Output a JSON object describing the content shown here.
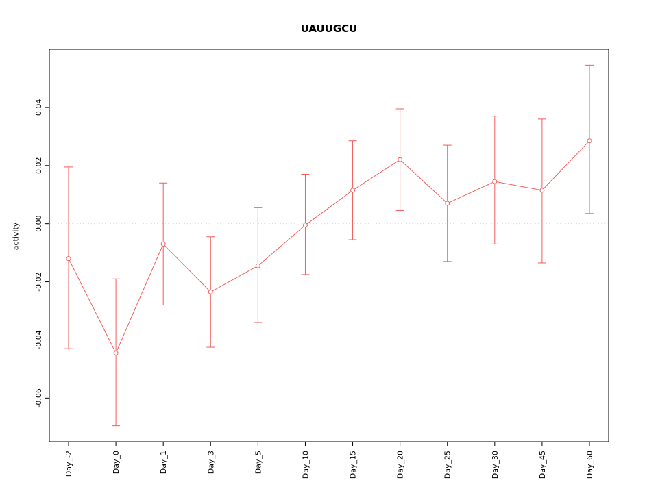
{
  "page": {
    "background": "#ffffff"
  },
  "chart_data": {
    "type": "line",
    "title": "UAUUGCU",
    "xlabel": "",
    "ylabel": "activity",
    "legend": "none",
    "grid": "off",
    "point_style": "open-circle",
    "error_bars": true,
    "series_color": "#f25c5c",
    "zero_line": {
      "show": true,
      "value": 0,
      "color": "#d9d9d9",
      "style": "dotted"
    },
    "ylim": [
      -0.075,
      0.06
    ],
    "yticks": [
      0.04,
      0.02,
      0,
      -0.02,
      -0.04,
      -0.06
    ],
    "ytick_labels": [
      "0.04",
      "0.02",
      "0.00",
      "-0.02",
      "-0.04",
      "-0.06"
    ],
    "categories": [
      "Day_-2",
      "Day_0",
      "Day_1",
      "Day_3",
      "Day_5",
      "Day_10",
      "Day_15",
      "Day_20",
      "Day_25",
      "Day_30",
      "Day_45",
      "Day_60"
    ],
    "series": [
      {
        "name": "activity",
        "values": [
          -0.012,
          -0.0445,
          -0.007,
          -0.0235,
          -0.0145,
          -0.0005,
          0.0115,
          0.022,
          0.007,
          0.0145,
          0.0115,
          0.0285
        ],
        "upper": [
          0.0195,
          -0.019,
          0.014,
          -0.0045,
          0.0055,
          0.017,
          0.0285,
          0.0395,
          0.027,
          0.037,
          0.036,
          0.0545
        ],
        "lower": [
          -0.043,
          -0.0695,
          -0.028,
          -0.0425,
          -0.034,
          -0.0175,
          -0.0055,
          0.0045,
          -0.013,
          -0.007,
          -0.0135,
          0.0035
        ]
      }
    ]
  }
}
